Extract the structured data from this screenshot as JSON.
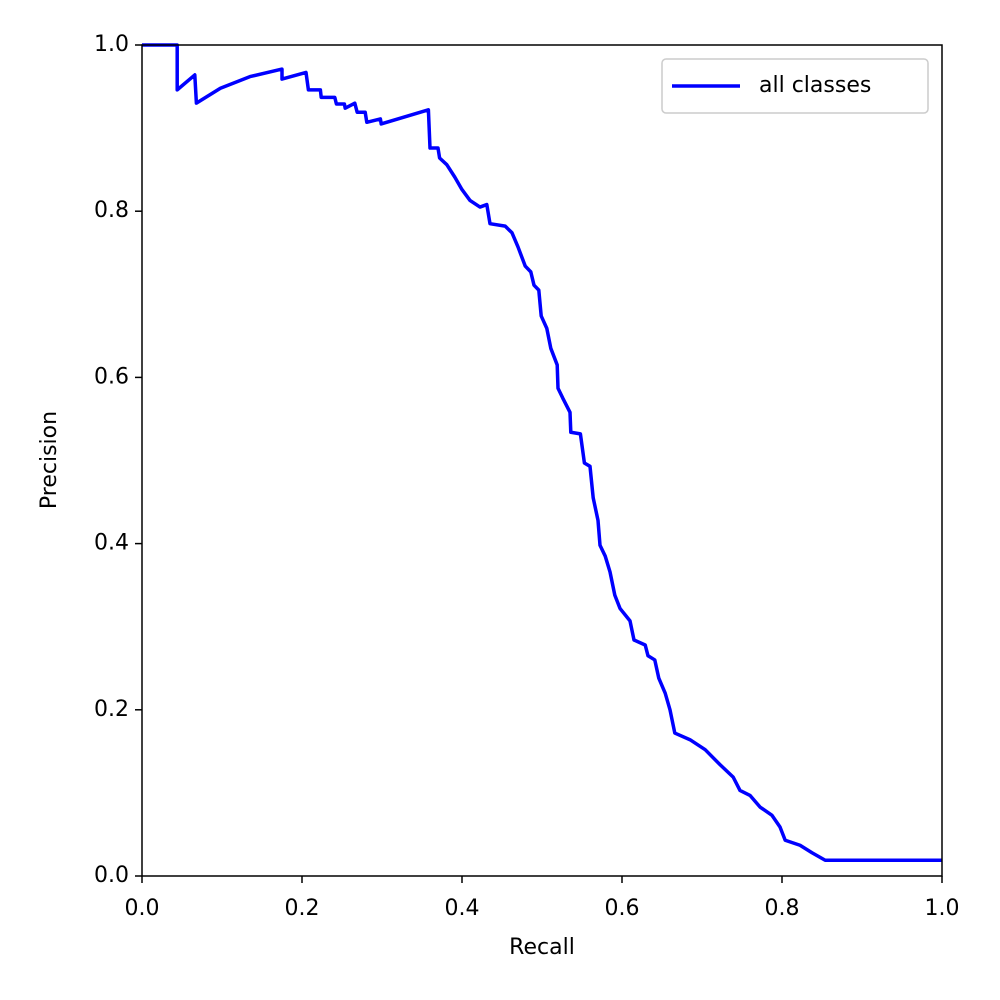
{
  "chart_data": {
    "type": "line",
    "xlabel": "Recall",
    "ylabel": "Precision",
    "x": [
      0,
      0.044,
      0.044,
      0.066,
      0.068,
      0.098,
      0.135,
      0.175,
      0.175,
      0.205,
      0.208,
      0.223,
      0.224,
      0.241,
      0.243,
      0.253,
      0.254,
      0.266,
      0.269,
      0.279,
      0.281,
      0.298,
      0.299,
      0.358,
      0.36,
      0.37,
      0.372,
      0.381,
      0.391,
      0.4,
      0.41,
      0.4225,
      0.431,
      0.435,
      0.454,
      0.4625,
      0.47,
      0.479,
      0.486,
      0.49,
      0.496,
      0.499,
      0.506,
      0.511,
      0.519,
      0.52,
      0.526,
      0.535,
      0.536,
      0.548,
      0.553,
      0.56,
      0.564,
      0.57,
      0.5725,
      0.579,
      0.585,
      0.591,
      0.5975,
      0.61,
      0.615,
      0.629,
      0.6325,
      0.641,
      0.646,
      0.654,
      0.66,
      0.666,
      0.685,
      0.704,
      0.7225,
      0.739,
      0.7475,
      0.76,
      0.7725,
      0.7875,
      0.7975,
      0.804,
      0.8225,
      0.8375,
      0.854,
      1.0
    ],
    "series": [
      {
        "name": "all classes",
        "color": "#0000ff",
        "values": [
          1.0,
          1.0,
          0.946,
          0.964,
          0.93,
          0.948,
          0.962,
          0.971,
          0.959,
          0.967,
          0.946,
          0.946,
          0.937,
          0.937,
          0.929,
          0.929,
          0.924,
          0.93,
          0.919,
          0.919,
          0.907,
          0.911,
          0.905,
          0.922,
          0.876,
          0.876,
          0.864,
          0.856,
          0.841,
          0.826,
          0.813,
          0.805,
          0.808,
          0.785,
          0.782,
          0.774,
          0.757,
          0.734,
          0.727,
          0.711,
          0.705,
          0.674,
          0.659,
          0.635,
          0.615,
          0.587,
          0.575,
          0.558,
          0.534,
          0.532,
          0.497,
          0.493,
          0.455,
          0.428,
          0.398,
          0.385,
          0.366,
          0.338,
          0.322,
          0.307,
          0.284,
          0.278,
          0.265,
          0.26,
          0.238,
          0.22,
          0.2,
          0.172,
          0.164,
          0.152,
          0.134,
          0.119,
          0.103,
          0.097,
          0.083,
          0.073,
          0.059,
          0.043,
          0.037,
          0.028,
          0.019,
          0.019
        ]
      }
    ],
    "xlim": [
      0,
      1
    ],
    "ylim": [
      0,
      1
    ],
    "xticks": [
      {
        "value": 0,
        "label": "0.0"
      },
      0.2,
      0.4,
      0.6,
      0.8,
      {
        "value": 1,
        "label": "1.0"
      }
    ],
    "yticks": [
      {
        "value": 0,
        "label": "0.0"
      },
      0.2,
      0.4,
      0.6,
      0.8,
      {
        "value": 1,
        "label": "1.0"
      }
    ],
    "legend": "upper right",
    "grid": false
  }
}
